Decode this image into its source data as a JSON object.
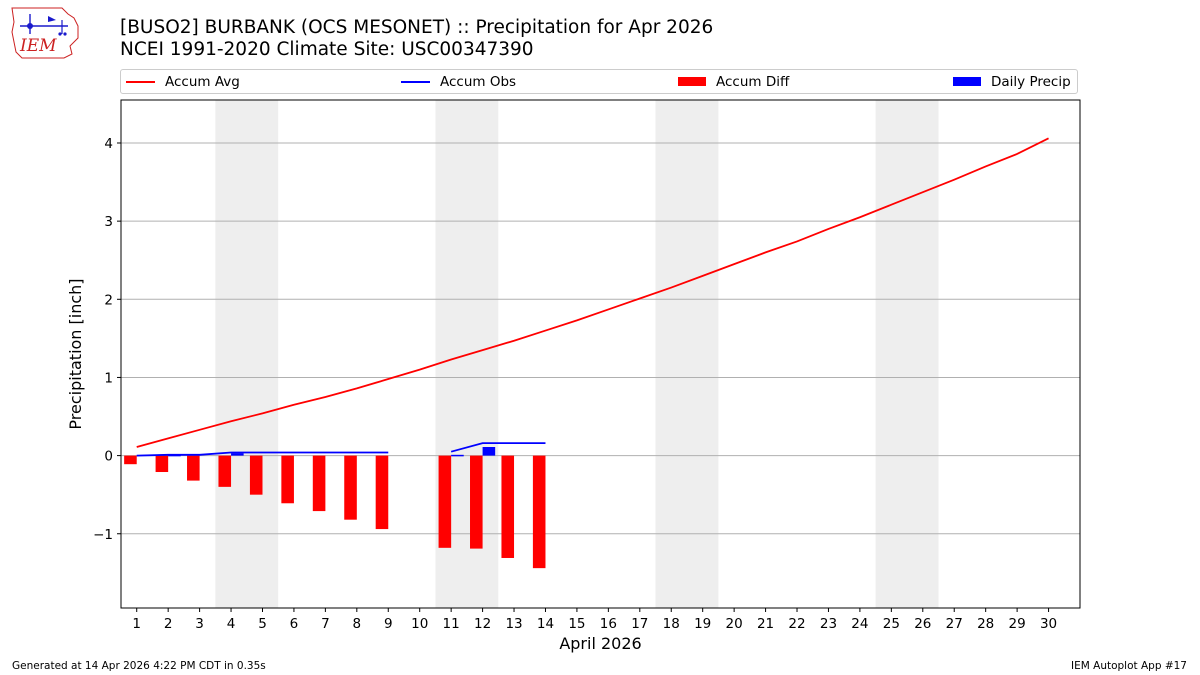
{
  "header": {
    "logo_text": "IEM",
    "title_line1": "[BUSO2] BURBANK (OCS MESONET) :: Precipitation for Apr 2026",
    "title_line2": "NCEI 1991-2020 Climate Site: USC00347390"
  },
  "footer": {
    "generated": "Generated at 14 Apr 2026 4:22 PM CDT in 0.35s",
    "app": "IEM Autoplot App #17"
  },
  "colors": {
    "accum_avg": "#ff0000",
    "accum_obs": "#0000ff",
    "accum_diff": "#ff0000",
    "daily_precip": "#0000ff",
    "weekend_shade": "#eeeeee",
    "grid": "#b0b0b0"
  },
  "chart_data": {
    "type": "bar",
    "xlabel": "April 2026",
    "ylabel": "Precipitation [inch]",
    "xlim": [
      0.5,
      31
    ],
    "ylim": [
      -1.95,
      4.55
    ],
    "x": [
      1,
      2,
      3,
      4,
      5,
      6,
      7,
      8,
      9,
      10,
      11,
      12,
      13,
      14,
      15,
      16,
      17,
      18,
      19,
      20,
      21,
      22,
      23,
      24,
      25,
      26,
      27,
      28,
      29,
      30
    ],
    "x_tick_labels": [
      "1",
      "2",
      "3",
      "4",
      "5",
      "6",
      "7",
      "8",
      "9",
      "10",
      "11",
      "12",
      "13",
      "14",
      "15",
      "16",
      "17",
      "18",
      "19",
      "20",
      "21",
      "22",
      "23",
      "24",
      "25",
      "26",
      "27",
      "28",
      "29",
      "30"
    ],
    "y_ticks": [
      -1,
      0,
      1,
      2,
      3,
      4
    ],
    "y_tick_labels": [
      "−1",
      "0",
      "1",
      "2",
      "3",
      "4"
    ],
    "grid": "horizontal",
    "legend_position": "top",
    "shaded_days": [
      [
        4,
        5
      ],
      [
        11,
        12
      ],
      [
        18,
        19
      ],
      [
        25,
        26
      ]
    ],
    "series": [
      {
        "name": "Accum Avg",
        "kind": "line",
        "values": [
          0.11,
          0.22,
          0.33,
          0.44,
          0.54,
          0.65,
          0.75,
          0.86,
          0.98,
          1.1,
          1.23,
          1.35,
          1.47,
          1.6,
          1.73,
          1.87,
          2.01,
          2.15,
          2.3,
          2.45,
          2.6,
          2.74,
          2.9,
          3.05,
          3.21,
          3.37,
          3.53,
          3.7,
          3.86,
          4.06
        ]
      },
      {
        "name": "Accum Obs",
        "kind": "line",
        "segments": [
          {
            "x": [
              1,
              2,
              3,
              4,
              5,
              6,
              7,
              8,
              9
            ],
            "values": [
              0.0,
              0.01,
              0.01,
              0.04,
              0.04,
              0.04,
              0.04,
              0.04,
              0.04
            ]
          },
          {
            "x": [
              11,
              12,
              13,
              14
            ],
            "values": [
              0.05,
              0.16,
              0.16,
              0.16
            ]
          }
        ]
      },
      {
        "name": "Accum Diff",
        "kind": "bar",
        "x": [
          1,
          2,
          3,
          4,
          5,
          6,
          7,
          8,
          9,
          11,
          12,
          13,
          14
        ],
        "values": [
          -0.11,
          -0.21,
          -0.32,
          -0.4,
          -0.5,
          -0.61,
          -0.71,
          -0.82,
          -0.94,
          -1.18,
          -1.19,
          -1.31,
          -1.44
        ]
      },
      {
        "name": "Daily Precip",
        "kind": "bar",
        "x": [
          1,
          2,
          3,
          4,
          5,
          6,
          7,
          8,
          9,
          11,
          12,
          13,
          14
        ],
        "values": [
          0.0,
          0.01,
          0.0,
          0.03,
          0.0,
          0.0,
          0.0,
          0.0,
          0.0,
          0.01,
          0.11,
          0.0,
          0.0
        ]
      }
    ]
  }
}
